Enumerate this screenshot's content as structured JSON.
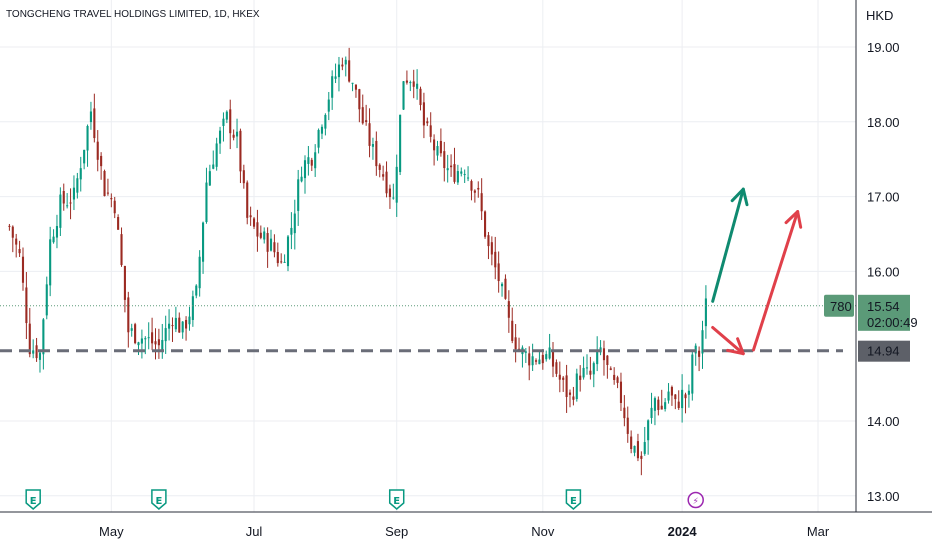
{
  "chart_data": {
    "type": "candlestick",
    "title": "TONGCHENG TRAVEL HOLDINGS LIMITED, 1D, HKEX",
    "currency": "HKD",
    "ylim": [
      12.85,
      19.4
    ],
    "y_ticks": [
      "19.00",
      "18.00",
      "17.00",
      "16.00",
      "14.00",
      "13.00"
    ],
    "x_tick_labels": [
      {
        "label": "May",
        "bar": 30,
        "bold": false
      },
      {
        "label": "Jul",
        "bar": 72,
        "bold": false
      },
      {
        "label": "Sep",
        "bar": 114,
        "bold": false
      },
      {
        "label": "Nov",
        "bar": 157,
        "bold": false
      },
      {
        "label": "2024",
        "bar": 198,
        "bold": true
      },
      {
        "label": "Mar",
        "bar": 238,
        "bold": false
      }
    ],
    "x_range_bars": [
      -1,
      248
    ],
    "grid": true,
    "up_color": "#089981",
    "down_color": "#9b2a22",
    "key_points": [
      {
        "bar": 0,
        "price": 16.6
      },
      {
        "bar": 3,
        "price": 16.2
      },
      {
        "bar": 6,
        "price": 15.0
      },
      {
        "bar": 9,
        "price": 14.9
      },
      {
        "bar": 12,
        "price": 16.4
      },
      {
        "bar": 15,
        "price": 16.9
      },
      {
        "bar": 19,
        "price": 17.0
      },
      {
        "bar": 24,
        "price": 18.15
      },
      {
        "bar": 28,
        "price": 17.1
      },
      {
        "bar": 31,
        "price": 16.9
      },
      {
        "bar": 35,
        "price": 15.2
      },
      {
        "bar": 40,
        "price": 15.1
      },
      {
        "bar": 44,
        "price": 15.0
      },
      {
        "bar": 48,
        "price": 15.4
      },
      {
        "bar": 51,
        "price": 15.2
      },
      {
        "bar": 55,
        "price": 15.7
      },
      {
        "bar": 58,
        "price": 17.2
      },
      {
        "bar": 61,
        "price": 17.7
      },
      {
        "bar": 64,
        "price": 18.05
      },
      {
        "bar": 67,
        "price": 17.75
      },
      {
        "bar": 70,
        "price": 16.7
      },
      {
        "bar": 73,
        "price": 16.5
      },
      {
        "bar": 77,
        "price": 16.35
      },
      {
        "bar": 80,
        "price": 16.1
      },
      {
        "bar": 83,
        "price": 16.6
      },
      {
        "bar": 86,
        "price": 17.4
      },
      {
        "bar": 89,
        "price": 17.55
      },
      {
        "bar": 92,
        "price": 18.05
      },
      {
        "bar": 95,
        "price": 18.5
      },
      {
        "bar": 98,
        "price": 18.85
      },
      {
        "bar": 101,
        "price": 18.55
      },
      {
        "bar": 104,
        "price": 18.0
      },
      {
        "bar": 107,
        "price": 17.6
      },
      {
        "bar": 110,
        "price": 17.3
      },
      {
        "bar": 113,
        "price": 16.95
      },
      {
        "bar": 116,
        "price": 18.6
      },
      {
        "bar": 119,
        "price": 18.6
      },
      {
        "bar": 122,
        "price": 17.95
      },
      {
        "bar": 126,
        "price": 17.55
      },
      {
        "bar": 130,
        "price": 17.3
      },
      {
        "bar": 134,
        "price": 17.4
      },
      {
        "bar": 138,
        "price": 17.0
      },
      {
        "bar": 141,
        "price": 16.3
      },
      {
        "bar": 144,
        "price": 15.9
      },
      {
        "bar": 147,
        "price": 15.3
      },
      {
        "bar": 150,
        "price": 14.95
      },
      {
        "bar": 153,
        "price": 14.85
      },
      {
        "bar": 156,
        "price": 14.85
      },
      {
        "bar": 159,
        "price": 14.85
      },
      {
        "bar": 162,
        "price": 14.55
      },
      {
        "bar": 165,
        "price": 14.3
      },
      {
        "bar": 168,
        "price": 14.65
      },
      {
        "bar": 171,
        "price": 14.6
      },
      {
        "bar": 174,
        "price": 14.95
      },
      {
        "bar": 177,
        "price": 14.55
      },
      {
        "bar": 180,
        "price": 14.3
      },
      {
        "bar": 183,
        "price": 13.7
      },
      {
        "bar": 186,
        "price": 13.5
      },
      {
        "bar": 188,
        "price": 13.95
      },
      {
        "bar": 190,
        "price": 14.3
      },
      {
        "bar": 192,
        "price": 14.15
      },
      {
        "bar": 194,
        "price": 14.4
      },
      {
        "bar": 196,
        "price": 14.2
      },
      {
        "bar": 198,
        "price": 14.35
      },
      {
        "bar": 200,
        "price": 14.3
      },
      {
        "bar": 201,
        "price": 14.9
      },
      {
        "bar": 203,
        "price": 14.9
      },
      {
        "bar": 205,
        "price": 15.54
      }
    ],
    "support_level": {
      "price": 14.94,
      "label": "14.94"
    },
    "current_price": {
      "price": 15.54,
      "label": "15.54",
      "countdown": "02:00:49",
      "volume_label": "780"
    },
    "earnings_markers": [
      {
        "bar": 7,
        "glyph": "E"
      },
      {
        "bar": 44,
        "glyph": "E"
      },
      {
        "bar": 114,
        "glyph": "E"
      },
      {
        "bar": 166,
        "glyph": "E"
      },
      {
        "bar": 202,
        "glyph": "⚡"
      }
    ],
    "arrows": [
      {
        "color": "#0f8a70",
        "from": {
          "bar": 207,
          "price": 15.6
        },
        "to": {
          "bar": 216,
          "price": 17.1
        }
      },
      {
        "color": "#e0404a",
        "from": {
          "bar": 207,
          "price": 15.25
        },
        "to": {
          "bar": 216,
          "price": 14.9
        }
      },
      {
        "color": "#e0404a",
        "from": {
          "bar": 219,
          "price": 14.95
        },
        "to": {
          "bar": 232,
          "price": 16.8
        }
      }
    ]
  }
}
